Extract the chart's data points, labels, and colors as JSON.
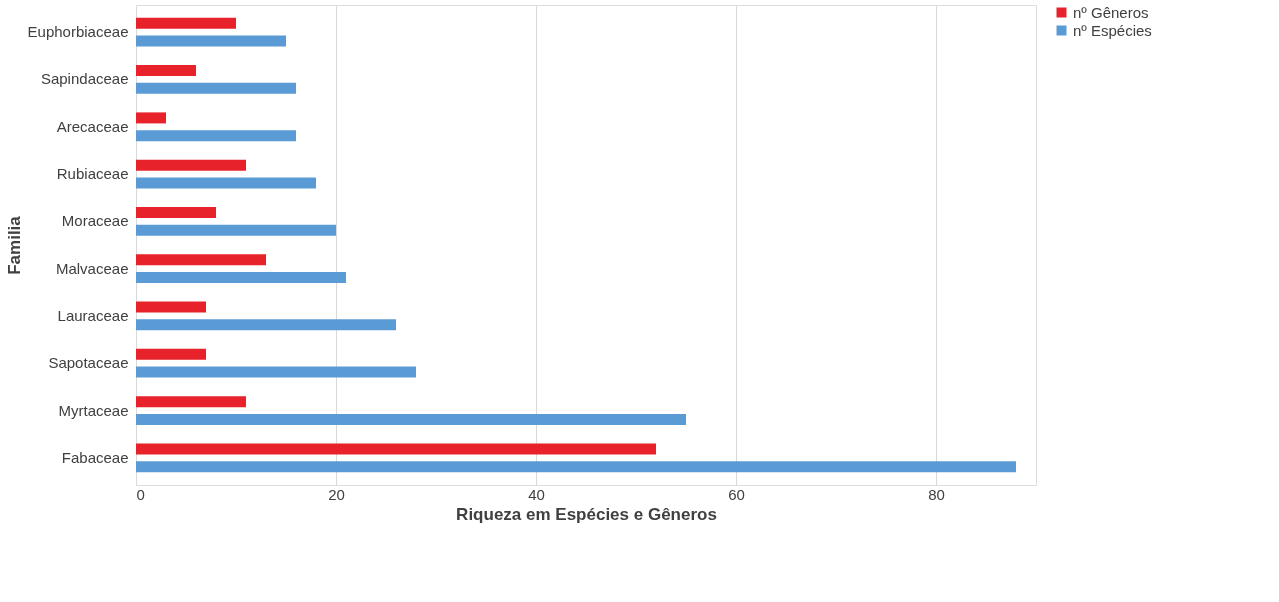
{
  "chart_data": {
    "type": "bar",
    "orientation": "horizontal",
    "xlabel": "Riqueza em Espécies e Gêneros",
    "ylabel": "Familia",
    "categories": [
      "Euphorbiaceae",
      "Sapindaceae",
      "Arecaceae",
      "Rubiaceae",
      "Moraceae",
      "Malvaceae",
      "Lauraceae",
      "Sapotaceae",
      "Myrtaceae",
      "Fabaceae"
    ],
    "series": [
      {
        "name": "nº Gêneros",
        "color": "#e8222a",
        "values": [
          10,
          6,
          3,
          11,
          8,
          13,
          7,
          7,
          11,
          52
        ]
      },
      {
        "name": "nº Espécies",
        "color": "#5b9bd5",
        "values": [
          15,
          16,
          16,
          18,
          20,
          21,
          26,
          28,
          55,
          88
        ]
      }
    ],
    "xlim": [
      0,
      90
    ],
    "xticks": [
      0,
      20,
      40,
      60,
      80
    ],
    "grid": "x",
    "legend": "right"
  }
}
